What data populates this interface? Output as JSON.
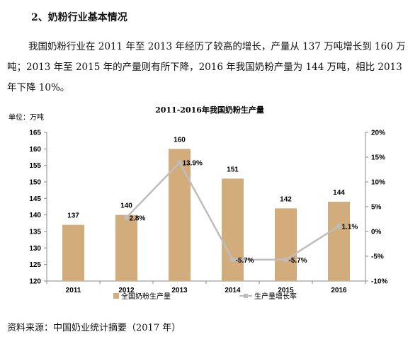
{
  "heading": "2、奶粉行业基本情况",
  "paragraph": "我国奶粉行业在 2011 年至 2013 年经历了较高的增长，产量从 137 万吨增长到 160 万吨；2013 年至 2015 年的产量则有所下降，2016 年我国奶粉产量为 144 万吨，相比 2013 年下降 10%。",
  "source": "资料来源：中国奶业统计摘要（2017 年）",
  "chart_data": {
    "type": "bar",
    "title": "2011-2016年我国奶粉生产量",
    "unit_label": "单位：万吨",
    "categories": [
      "2011",
      "2012",
      "2013",
      "2014",
      "2015",
      "2016"
    ],
    "series": [
      {
        "name": "全国奶粉生产量",
        "type": "bar",
        "axis": "left",
        "color": "#D2AC7A",
        "values": [
          137,
          140,
          160,
          151,
          142,
          144
        ],
        "labels": [
          "137",
          "140",
          "160",
          "151",
          "142",
          "144"
        ]
      },
      {
        "name": "生产量增长率",
        "type": "line",
        "axis": "right",
        "color": "#BDBDBD",
        "values": [
          null,
          2.8,
          13.9,
          -5.7,
          -5.7,
          1.1
        ],
        "labels": [
          "",
          "2.8%",
          "13.9%",
          "-5.7%",
          "-5.7%",
          "1.1%"
        ]
      }
    ],
    "y_left": {
      "min": 120,
      "max": 165,
      "ticks": [
        "120",
        "125",
        "130",
        "135",
        "140",
        "145",
        "150",
        "155",
        "160",
        "165"
      ]
    },
    "y_right": {
      "min": -10,
      "max": 20,
      "ticks": [
        "-10%",
        "-5%",
        "0%",
        "5%",
        "10%",
        "15%",
        "20%"
      ]
    },
    "legend_position": "bottom",
    "grid": false
  }
}
